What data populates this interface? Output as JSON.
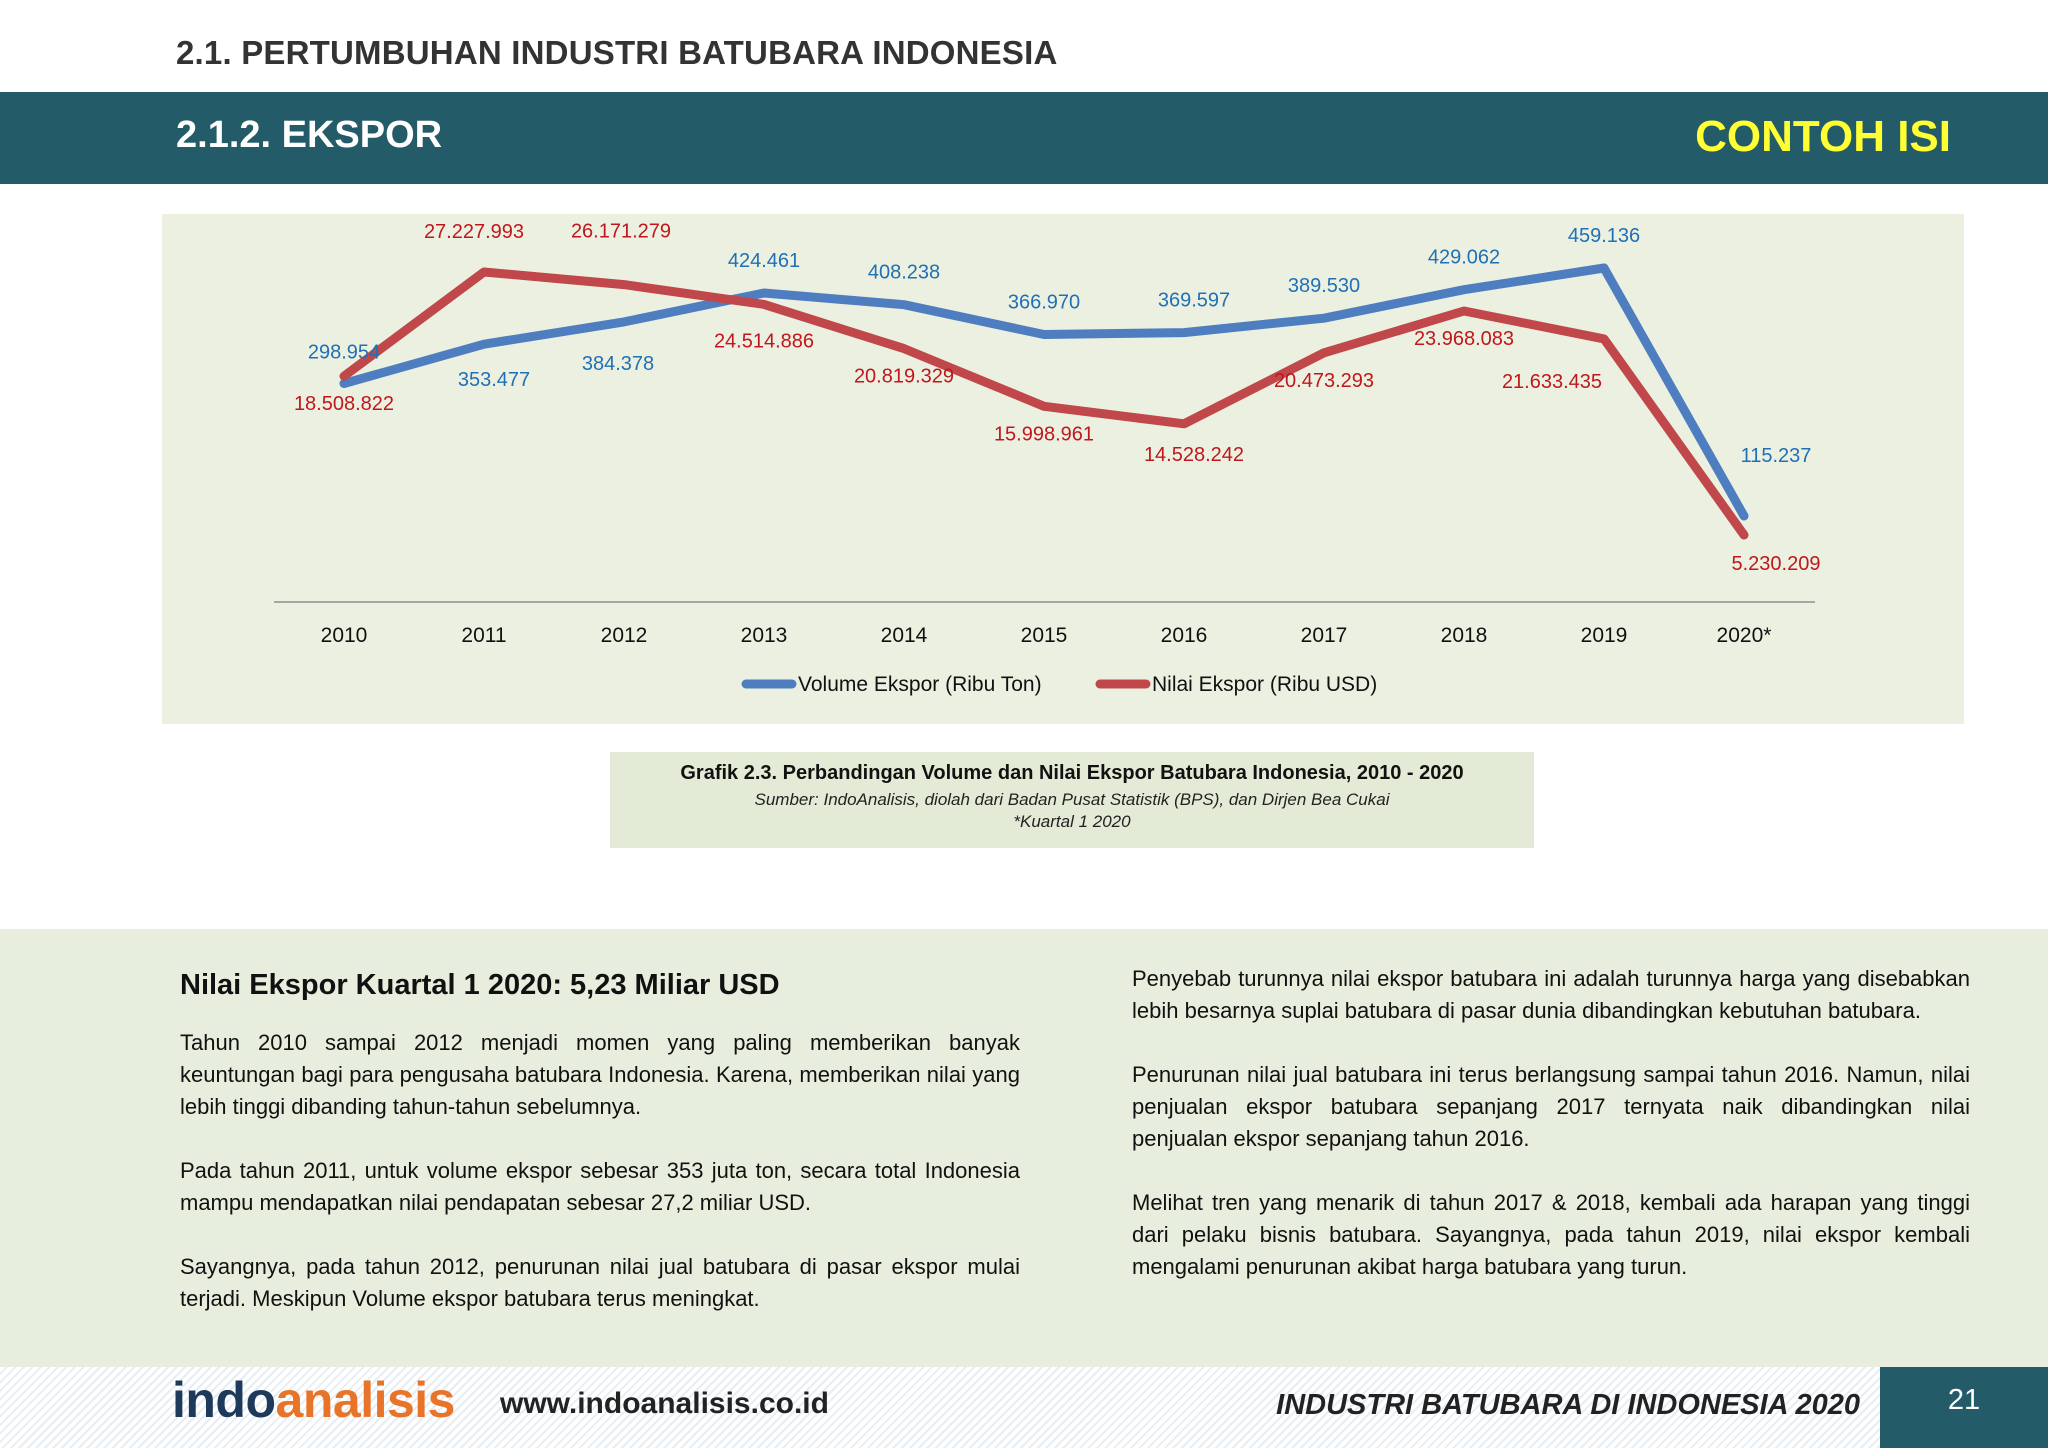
{
  "header": {
    "section_title": "2.1. PERTUMBUHAN INDUSTRI BATUBARA INDONESIA",
    "subsection_title": "2.1.2. EKSPOR",
    "tag": "CONTOH ISI",
    "band_color": "#245b69",
    "tag_color": "#ffff33"
  },
  "chart_data": {
    "type": "line",
    "categories": [
      "2010",
      "2011",
      "2012",
      "2013",
      "2014",
      "2015",
      "2016",
      "2017",
      "2018",
      "2019",
      "2020*"
    ],
    "series": [
      {
        "name": "Volume Ekspor (Ribu Ton)",
        "color": "#4f7ec0",
        "label_color": "#1f70b5",
        "values": [
          298954,
          353477,
          384378,
          424461,
          408238,
          366970,
          369597,
          389530,
          429062,
          459136,
          115237
        ],
        "labels": [
          "298.954",
          "353.477",
          "384.378",
          "424.461",
          "408.238",
          "366.970",
          "369.597",
          "389.530",
          "429.062",
          "459.136",
          "115.237"
        ]
      },
      {
        "name": "Nilai Ekspor (Ribu USD)",
        "color": "#c0474a",
        "label_color": "#c0171d",
        "values": [
          18508822,
          27227993,
          26171279,
          24514886,
          20819329,
          15998961,
          14528242,
          20473293,
          23968083,
          21633435,
          5230209
        ],
        "labels": [
          "18.508.822",
          "27.227.993",
          "26.171.279",
          "24.514.886",
          "20.819.329",
          "15.998.961",
          "14.528.242",
          "20.473.293",
          "23.968.083",
          "21.633.435",
          "5.230.209"
        ]
      }
    ],
    "legend_position": "bottom",
    "grid": false
  },
  "caption": {
    "title": "Grafik 2.3. Perbandingan Volume dan Nilai Ekspor Batubara Indonesia, 2010 - 2020",
    "source": "Sumber: IndoAnalisis, diolah dari Badan Pusat Statistik (BPS), dan Dirjen Bea Cukai",
    "note": "*Kuartal 1 2020"
  },
  "body": {
    "heading": "Nilai Ekspor Kuartal 1 2020: 5,23 Miliar USD",
    "left_paragraphs": [
      "Tahun 2010 sampai 2012 menjadi momen yang paling memberikan banyak keuntungan bagi para pengusaha batubara Indonesia. Karena, memberikan nilai yang lebih tinggi dibanding tahun-tahun sebelumnya.",
      "Pada tahun 2011, untuk volume ekspor sebesar 353 juta ton, secara total Indonesia mampu mendapatkan nilai  pendapatan sebesar 27,2 miliar USD.",
      "Sayangnya, pada tahun 2012, penurunan nilai jual batubara di pasar ekspor mulai terjadi. Meskipun Volume ekspor batubara terus meningkat."
    ],
    "right_paragraphs": [
      "Penyebab turunnya nilai ekspor batubara ini adalah turunnya harga yang disebabkan lebih besarnya suplai batubara di pasar dunia dibandingkan kebutuhan batubara.",
      "Penurunan nilai jual batubara ini terus berlangsung sampai tahun 2016. Namun, nilai penjualan ekspor batubara sepanjang 2017 ternyata naik dibandingkan nilai penjualan ekspor sepanjang tahun 2016.",
      "Melihat tren yang menarik di tahun 2017 & 2018, kembali ada harapan yang tinggi dari pelaku bisnis batubara. Sayangnya, pada tahun 2019, nilai ekspor kembali mengalami penurunan akibat harga batubara yang turun."
    ]
  },
  "footer": {
    "logo_part1": "indo",
    "logo_part2": "analisis",
    "website": "www.indoanalisis.co.id",
    "report_title": "INDUSTRI BATUBARA DI INDONESIA 2020",
    "page_number": "21"
  }
}
